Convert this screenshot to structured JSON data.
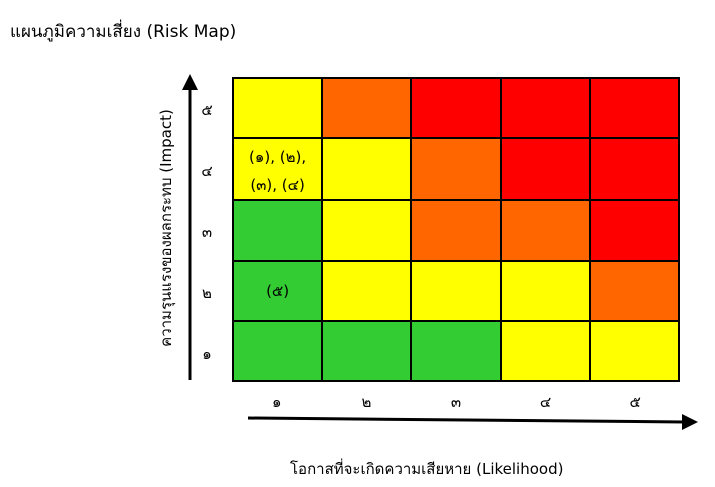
{
  "title": "แผนภูมิความเสี่ยง (Risk Map)",
  "y_axis": {
    "label": "ความรุนแรงของผลกระทบ (Impact)",
    "ticks": [
      "๕",
      "๔",
      "๓",
      "๒",
      "๑"
    ]
  },
  "x_axis": {
    "label": "โอกาสที่จะเกิดความเสียหาย (Likelihood)",
    "ticks": [
      "๑",
      "๒",
      "๓",
      "๔",
      "๕"
    ]
  },
  "colors": {
    "green": "#33cc33",
    "yellow": "#ffff00",
    "orange": "#ff6600",
    "red": "#ff0000"
  },
  "rows": [
    {
      "impact": "๕",
      "cells": [
        {
          "color": "#ffff00",
          "text": ""
        },
        {
          "color": "#ff6600",
          "text": ""
        },
        {
          "color": "#ff0000",
          "text": ""
        },
        {
          "color": "#ff0000",
          "text": ""
        },
        {
          "color": "#ff0000",
          "text": ""
        }
      ]
    },
    {
      "impact": "๔",
      "cells": [
        {
          "color": "#ffff00",
          "text": "(๑), (๒), (๓), (๔)"
        },
        {
          "color": "#ffff00",
          "text": ""
        },
        {
          "color": "#ff6600",
          "text": ""
        },
        {
          "color": "#ff0000",
          "text": ""
        },
        {
          "color": "#ff0000",
          "text": ""
        }
      ]
    },
    {
      "impact": "๓",
      "cells": [
        {
          "color": "#33cc33",
          "text": ""
        },
        {
          "color": "#ffff00",
          "text": ""
        },
        {
          "color": "#ff6600",
          "text": ""
        },
        {
          "color": "#ff6600",
          "text": ""
        },
        {
          "color": "#ff0000",
          "text": ""
        }
      ]
    },
    {
      "impact": "๒",
      "cells": [
        {
          "color": "#33cc33",
          "text": "(๕)"
        },
        {
          "color": "#ffff00",
          "text": ""
        },
        {
          "color": "#ffff00",
          "text": ""
        },
        {
          "color": "#ffff00",
          "text": ""
        },
        {
          "color": "#ff6600",
          "text": ""
        }
      ]
    },
    {
      "impact": "๑",
      "cells": [
        {
          "color": "#33cc33",
          "text": ""
        },
        {
          "color": "#33cc33",
          "text": ""
        },
        {
          "color": "#33cc33",
          "text": ""
        },
        {
          "color": "#ffff00",
          "text": ""
        },
        {
          "color": "#ffff00",
          "text": ""
        }
      ]
    }
  ]
}
